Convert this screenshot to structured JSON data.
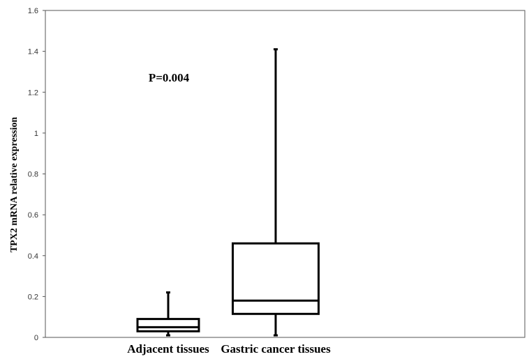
{
  "chart_data": {
    "type": "box",
    "ylabel": "TPX2  mRNA relative expression",
    "ylim": [
      0,
      1.6
    ],
    "yticks": [
      {
        "value": 0,
        "label": "0"
      },
      {
        "value": 0.2,
        "label": "0.2"
      },
      {
        "value": 0.4,
        "label": "0.4"
      },
      {
        "value": 0.6,
        "label": "0.6"
      },
      {
        "value": 0.8,
        "label": "0.8"
      },
      {
        "value": 1.0,
        "label": "1"
      },
      {
        "value": 1.2,
        "label": "1.2"
      },
      {
        "value": 1.4,
        "label": "1.4"
      },
      {
        "value": 1.6,
        "label": "1.6"
      }
    ],
    "categories": [
      "Adjacent tissues",
      "Gastric cancer tissues"
    ],
    "boxes": [
      {
        "min": 0.01,
        "q1": 0.03,
        "median": 0.05,
        "q3": 0.09,
        "max": 0.22
      },
      {
        "min": 0.01,
        "q1": 0.115,
        "median": 0.18,
        "q3": 0.46,
        "max": 1.41
      }
    ],
    "annotation": "P=0.004",
    "grid": false,
    "colors": {
      "stroke": "#000000",
      "axis": "#555555"
    }
  }
}
